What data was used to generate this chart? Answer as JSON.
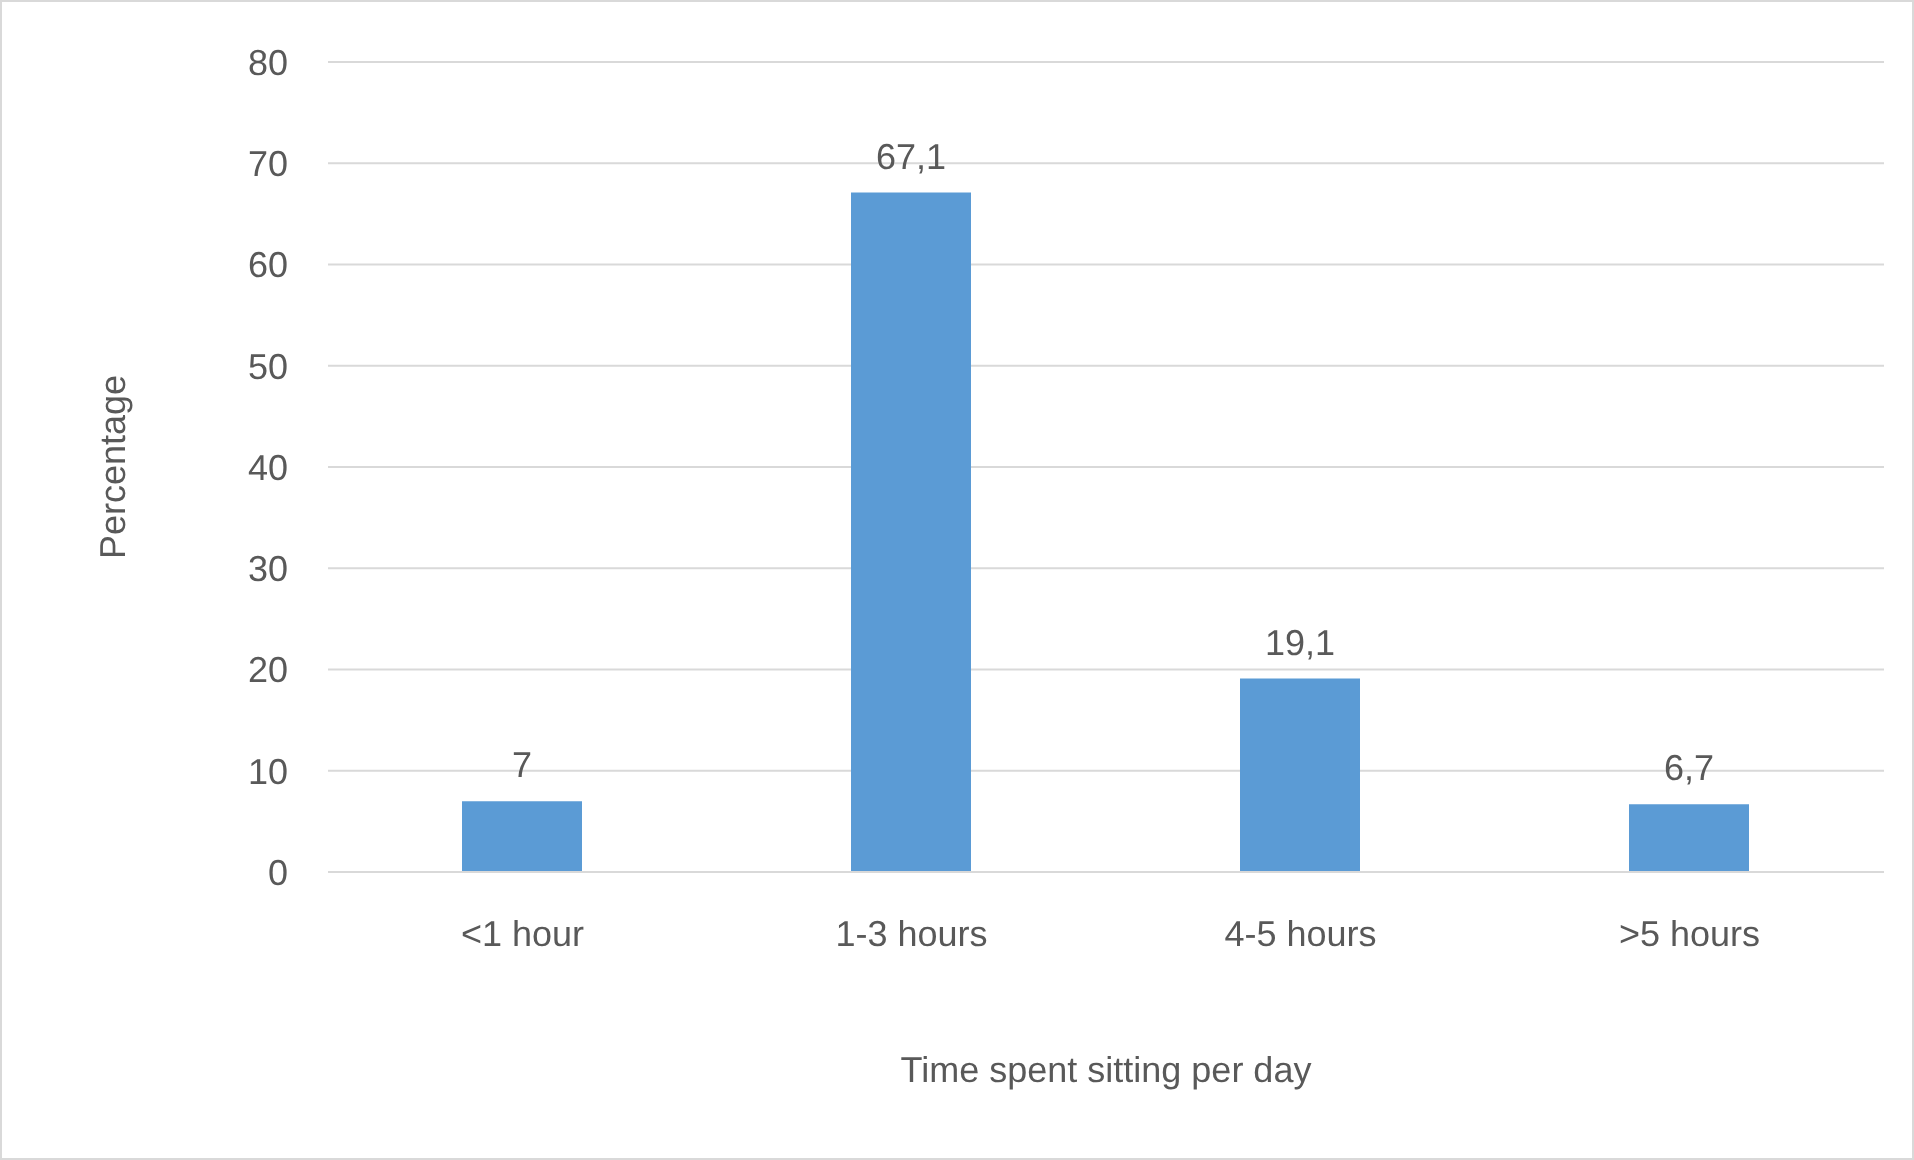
{
  "chart_data": {
    "type": "bar",
    "xlabel": "Time spent sitting per day",
    "ylabel": "Percentage",
    "categories": [
      "<1 hour",
      "1-3 hours",
      "4-5 hours",
      ">5 hours"
    ],
    "values": [
      7,
      67.1,
      19.1,
      6.7
    ],
    "value_labels": [
      "7",
      "67,1",
      "19,1",
      "6,7"
    ],
    "color": "#5b9bd5",
    "ylim": [
      0,
      80
    ],
    "yticks": [
      0,
      10,
      20,
      30,
      40,
      50,
      60,
      70,
      80
    ],
    "grid": "y"
  }
}
